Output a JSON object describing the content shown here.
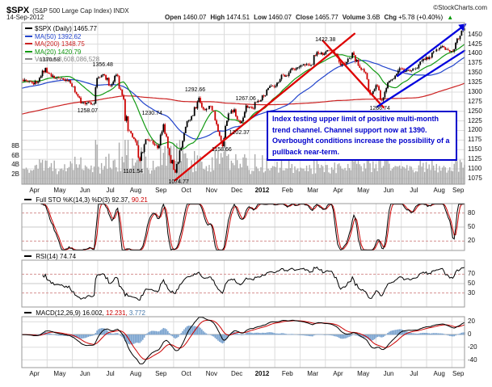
{
  "header": {
    "symbol": "$SPX",
    "name": "(S&P 500 Large Cap Index) INDX",
    "copyright": "©StockCharts.com",
    "date": "14-Sep-2012",
    "quote": [
      {
        "label": "Open",
        "value": "1460.07"
      },
      {
        "label": "High",
        "value": "1474.51"
      },
      {
        "label": "Low",
        "value": "1460.07"
      },
      {
        "label": "Close",
        "value": "1465.77"
      },
      {
        "label": "Volume",
        "value": "3.6B"
      },
      {
        "label": "Chg",
        "value": "+5.78 (+0.40%)"
      }
    ],
    "chg_arrow": "▲"
  },
  "legend": [
    {
      "label": "$SPX (Daily)",
      "value": "1465.77",
      "color": "#000000"
    },
    {
      "label": "MA(50)",
      "value": "1392.62",
      "color": "#2244cc"
    },
    {
      "label": "MA(200)",
      "value": "1348.75",
      "color": "#cc2222"
    },
    {
      "label": "MA(20)",
      "value": "1420.79",
      "color": "#119911"
    },
    {
      "label": "Volume",
      "value": "3,608,086,528",
      "color": "#888888"
    }
  ],
  "annotation": {
    "text": "Index testing upper limit of positive multi-month trend channel. Channel support now at 1390.  Overbought conditions increase the possibility of a pullback near-term.",
    "color": "#0000cc"
  },
  "chart_data": {
    "type": "candlestick",
    "title": "$SPX S&P 500 Large Cap Index, Daily, 14-Sep-2012",
    "x_axis": {
      "months": [
        "Apr",
        "May",
        "Jun",
        "Jul",
        "Aug",
        "Sep",
        "Oct",
        "Nov",
        "Dec",
        "2012",
        "Feb",
        "Mar",
        "Apr",
        "May",
        "Jun",
        "Jul",
        "Aug",
        "Sep"
      ],
      "bold": "2012",
      "span_months": 17.5
    },
    "price_panel": {
      "y_ticks": [
        1450,
        1425,
        1400,
        1375,
        1350,
        1325,
        1300,
        1275,
        1250,
        1225,
        1200,
        1175,
        1150,
        1125,
        1100,
        1075
      ],
      "y_range": [
        1060,
        1481
      ],
      "volume_ticks": [
        "8B",
        "6B",
        "4B",
        "2B"
      ],
      "ohlc_current": {
        "open": 1460.07,
        "high": 1474.51,
        "low": 1460.07,
        "close": 1465.77,
        "volume": "3.6B",
        "chg": "+5.78 (+0.40%)"
      },
      "ma_values": {
        "ma20": 1420.79,
        "ma50": 1392.62,
        "ma200": 1348.75
      },
      "weekly_closes": [
        1332,
        1328,
        1320,
        1337,
        1363,
        1340,
        1337,
        1333,
        1331,
        1300,
        1271,
        1272,
        1268,
        1339,
        1344,
        1316,
        1345,
        1292,
        1199,
        1178,
        1121,
        1177,
        1174,
        1154,
        1216,
        1136,
        1090,
        1155,
        1224,
        1238,
        1285,
        1253,
        1264,
        1216,
        1159,
        1244,
        1255,
        1219,
        1265,
        1258,
        1277,
        1289,
        1315,
        1316,
        1345,
        1342,
        1361,
        1366,
        1370,
        1371,
        1404,
        1397,
        1408,
        1398,
        1370,
        1378,
        1403,
        1369,
        1353,
        1295,
        1318,
        1278,
        1325,
        1335,
        1362,
        1355,
        1356,
        1363,
        1386,
        1391,
        1406,
        1418,
        1411,
        1406,
        1438,
        1466
      ],
      "price_labels": [
        {
          "text": "1370.58",
          "m": 1.1,
          "price": 1381
        },
        {
          "text": "1356.48",
          "m": 3.2,
          "price": 1367
        },
        {
          "text": "1258.07",
          "m": 2.6,
          "price": 1247
        },
        {
          "text": "1292.66",
          "m": 6.85,
          "price": 1303
        },
        {
          "text": "1230.74",
          "m": 5.15,
          "price": 1242
        },
        {
          "text": "1267.06",
          "m": 8.85,
          "price": 1278
        },
        {
          "text": "1202.37",
          "m": 8.6,
          "price": 1191
        },
        {
          "text": "1158.66",
          "m": 7.9,
          "price": 1147
        },
        {
          "text": "1101.54",
          "m": 4.4,
          "price": 1089
        },
        {
          "text": "1074.77",
          "m": 6.2,
          "price": 1062
        },
        {
          "text": "1266.74",
          "m": 14.15,
          "price": 1254
        },
        {
          "text": "1422.38",
          "m": 12.0,
          "price": 1433
        }
      ],
      "trend_lines": [
        {
          "color": "#dd0000",
          "width": 2.3,
          "from": {
            "m": 6.05,
            "price": 1070
          },
          "to": {
            "m": 13.15,
            "price": 1452
          },
          "arrow": false
        },
        {
          "color": "#dd0000",
          "width": 2.3,
          "from": {
            "m": 11.9,
            "price": 1434
          },
          "to": {
            "m": 14.3,
            "price": 1260
          },
          "arrow": false
        },
        {
          "color": "#0000dd",
          "width": 2.3,
          "from": {
            "m": 14.05,
            "price": 1262
          },
          "to": {
            "m": 17.5,
            "price": 1408
          },
          "arrow": false
        },
        {
          "color": "#0000dd",
          "width": 2.3,
          "from": {
            "m": 14.85,
            "price": 1342
          },
          "to": {
            "m": 17.45,
            "price": 1472
          },
          "arrow": true
        }
      ]
    },
    "sto_panel": {
      "title": "Full STO %K(14,3) %D(3)",
      "k_label": "92.37,",
      "d_label": "90.21",
      "k": 92.37,
      "d": 90.21,
      "ticks": [
        80,
        50,
        20
      ]
    },
    "rsi_panel": {
      "title": "RSI(14)",
      "value_label": "74.74",
      "value": 74.74,
      "ticks": [
        70,
        50,
        30
      ]
    },
    "macd_panel": {
      "title": "MACD(12,26,9)",
      "macd_label": "16.002,",
      "signal_label": "12.231,",
      "hist_label": "3.772",
      "macd": 16.002,
      "signal": 12.231,
      "hist": 3.772,
      "ticks": [
        20,
        0,
        -20,
        -40
      ]
    }
  }
}
